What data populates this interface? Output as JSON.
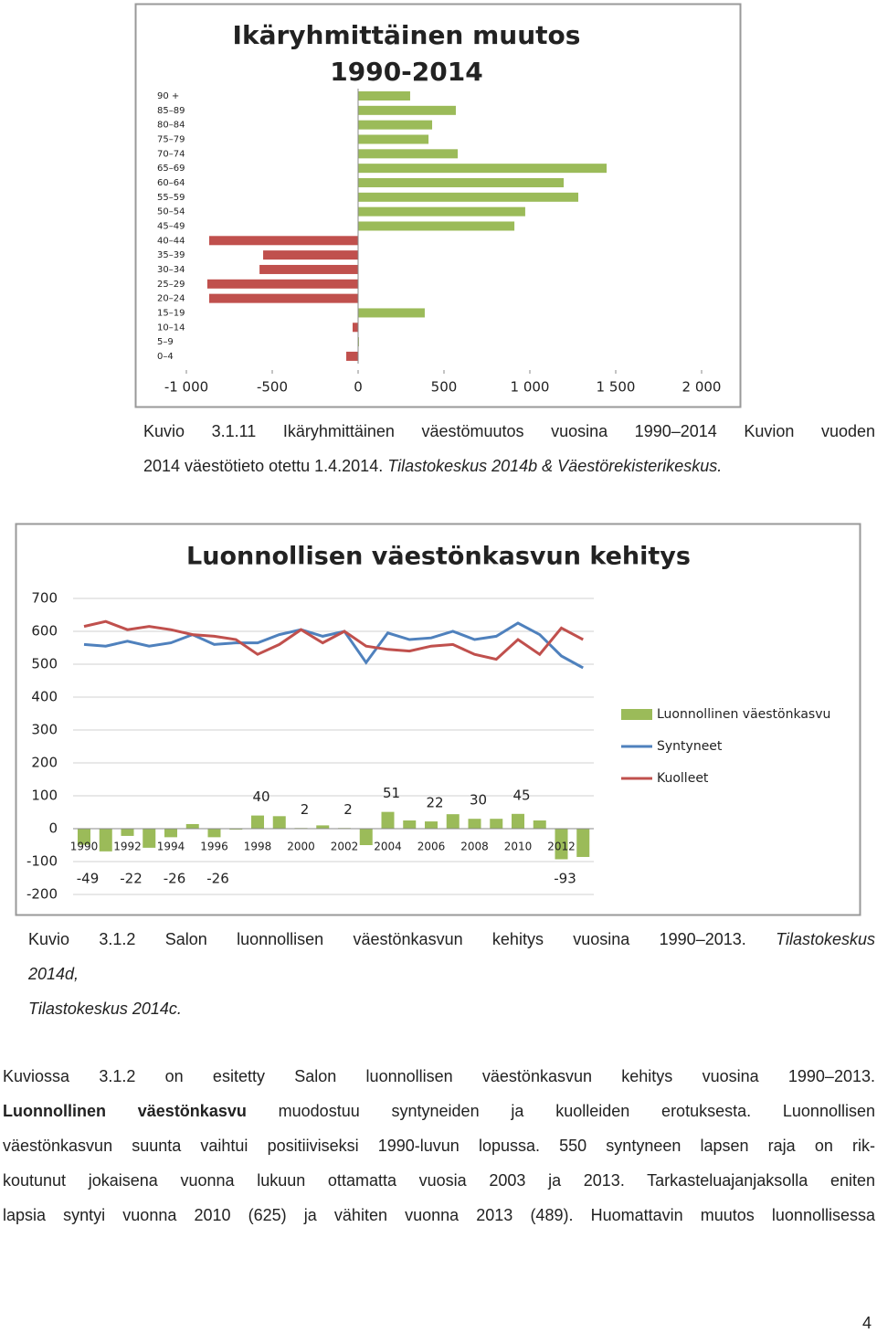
{
  "chart_data": [
    {
      "type": "bar",
      "orientation": "horizontal",
      "title": "Ikäryhmittäinen muutos",
      "subtitle": "1990-2014",
      "categories": [
        "90 +",
        "85–89",
        "80–84",
        "75–79",
        "70–74",
        "65–69",
        "60–64",
        "55–59",
        "50–54",
        "45–49",
        "40–44",
        "35–39",
        "30–34",
        "25–29",
        "20–24",
        "15–19",
        "10–14",
        "5–9",
        "0–4"
      ],
      "values": [
        303,
        569,
        431,
        410,
        580,
        1447,
        1197,
        1282,
        973,
        910,
        -867,
        -553,
        -574,
        -878,
        -867,
        388,
        -32,
        5,
        -69
      ],
      "colors": {
        "positive": "#9bbb59",
        "negative": "#c0504d"
      },
      "xlim": [
        -1000,
        2000
      ],
      "xticks": [
        {
          "value": -1000,
          "label": "-1 000"
        },
        -500,
        0,
        500,
        {
          "value": 1000,
          "label": "1 000"
        },
        {
          "value": 1500,
          "label": "1 500"
        },
        {
          "value": 2000,
          "label": "2 000"
        }
      ]
    },
    {
      "type": "combo",
      "title": "Luonnollisen väestönkasvun kehitys",
      "categories": [
        "1990",
        null,
        "1992",
        null,
        "1994",
        null,
        "1996",
        null,
        "1998",
        null,
        "2000",
        null,
        "2002",
        null,
        "2004",
        null,
        "2006",
        null,
        "2008",
        null,
        "2010",
        null,
        "2012",
        null
      ],
      "series": [
        {
          "name": "Luonnollinen väestönkasvu",
          "type": "bar",
          "color": "#9bbb59",
          "values": [
            -49,
            -69,
            -22,
            -58,
            -26,
            14,
            -26,
            -3,
            40,
            38,
            2,
            10,
            2,
            -50,
            51,
            25,
            22,
            44,
            30,
            30,
            45,
            25,
            -93,
            -86
          ],
          "value_labels": [
            "-49",
            null,
            "-22",
            null,
            "-26",
            null,
            "-26",
            null,
            "40",
            null,
            "2",
            null,
            "2",
            null,
            "51",
            null,
            "22",
            null,
            "30",
            null,
            "45",
            null,
            "-93",
            null
          ]
        },
        {
          "name": "Syntyneet",
          "type": "line",
          "color": "#4f81bd",
          "values": [
            560,
            555,
            570,
            555,
            565,
            590,
            560,
            565,
            565,
            590,
            605,
            585,
            600,
            505,
            595,
            575,
            580,
            600,
            575,
            585,
            625,
            590,
            525,
            489
          ]
        },
        {
          "name": "Kuolleet",
          "type": "line",
          "color": "#c0504d",
          "values": [
            615,
            630,
            605,
            615,
            605,
            590,
            585,
            575,
            530,
            560,
            605,
            565,
            600,
            555,
            545,
            540,
            555,
            560,
            530,
            515,
            575,
            530,
            610,
            575
          ]
        }
      ],
      "ylim": [
        -200,
        700
      ],
      "yticks": [
        -200,
        -100,
        0,
        100,
        200,
        300,
        400,
        500,
        600,
        700
      ],
      "grid": true,
      "legend": "right"
    }
  ],
  "caption_1": {
    "line_1": "Kuvio 3.1.11 Ikäryhmittäinen väestömuutos vuosina 1990–2014 Kuvion vuoden",
    "line_2": "2014 väestötieto otettu 1.4.2014.",
    "line_2_italic": "Tilastokeskus 2014b & Väestörekisterikeskus."
  },
  "caption_2": {
    "line_1": "Kuvio 3.1.2 Salon luonnollisen väestönkasvun kehitys vuosina 1990–2013.",
    "line_1_italic": "Tilastokeskus",
    "line_2_italic": "2014d,",
    "line_3_italic": "Tilastokeskus 2014c."
  },
  "body": {
    "line_1": "Kuviossa 3.1.2 on esitetty Salon luonnollisen väestönkasvun kehitys vuosina 1990–2013.",
    "line_2_bold": "Luonnollinen väestönkasvu",
    "line_2": "muodostuu syntyneiden ja kuolleiden erotuksesta. Luonnollisen",
    "line_3": "väestönkasvun suunta vaihtui positiiviseksi 1990-luvun lopussa. 550 syntyneen lapsen raja on rik-",
    "line_4": "koutunut jokaisena vuonna lukuun ottamatta vuosia 2003 ja 2013. Tarkasteluajanjaksolla eniten",
    "line_5": "lapsia syntyi vuonna 2010 (625) ja vähiten vuonna 2013 (489). Huomattavin muutos luonnollisessa"
  },
  "page_number": "4"
}
